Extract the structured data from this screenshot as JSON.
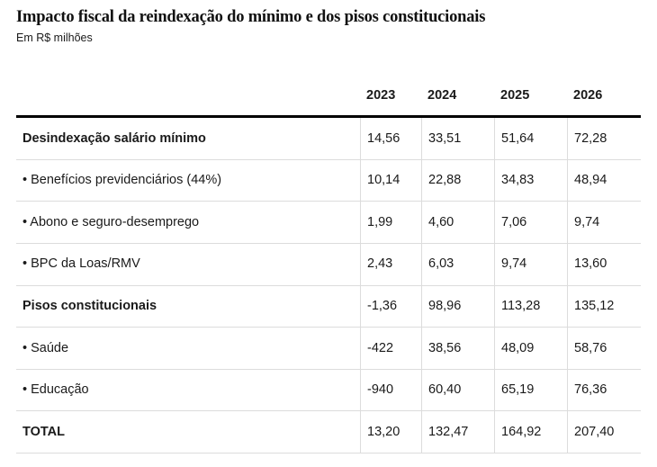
{
  "chart_data": {
    "type": "table",
    "title": "Impacto fiscal da reindexação do mínimo e dos pisos constitucionais",
    "subtitle": "Em R$ milhões",
    "columns": [
      "2023",
      "2024",
      "2025",
      "2026"
    ],
    "rows": [
      {
        "label": "Desindexação salário mínimo",
        "values": [
          "14,56",
          "33,51",
          "51,64",
          "72,28"
        ]
      },
      {
        "label": "• Benefícios previdenciários (44%)",
        "values": [
          "10,14",
          "22,88",
          "34,83",
          "48,94"
        ]
      },
      {
        "label": "• Abono e seguro-desemprego",
        "values": [
          "1,99",
          "4,60",
          "7,06",
          "9,74"
        ]
      },
      {
        "label": "• BPC da Loas/RMV",
        "values": [
          "2,43",
          "6,03",
          "9,74",
          "13,60"
        ]
      },
      {
        "label": "Pisos constitucionais",
        "values": [
          "-1,36",
          "98,96",
          "113,28",
          "135,12"
        ]
      },
      {
        "label": "• Saúde",
        "values": [
          "-422",
          "38,56",
          "48,09",
          "58,76"
        ]
      },
      {
        "label": "• Educação",
        "values": [
          "-940",
          "60,40",
          "65,19",
          "76,36"
        ]
      },
      {
        "label": "TOTAL",
        "values": [
          "13,20",
          "132,47",
          "164,92",
          "207,40"
        ]
      }
    ],
    "layout": {
      "bold_row_indexes": [
        0,
        4,
        7
      ],
      "grid": "horizontal separators all rows, vertical separators between value columns (body only), thick black rule under year header"
    },
    "colors": {
      "text": "#1a1a1a",
      "header_rule": "#000000",
      "grid_line": "#dcdcdc",
      "background": "#ffffff"
    }
  }
}
